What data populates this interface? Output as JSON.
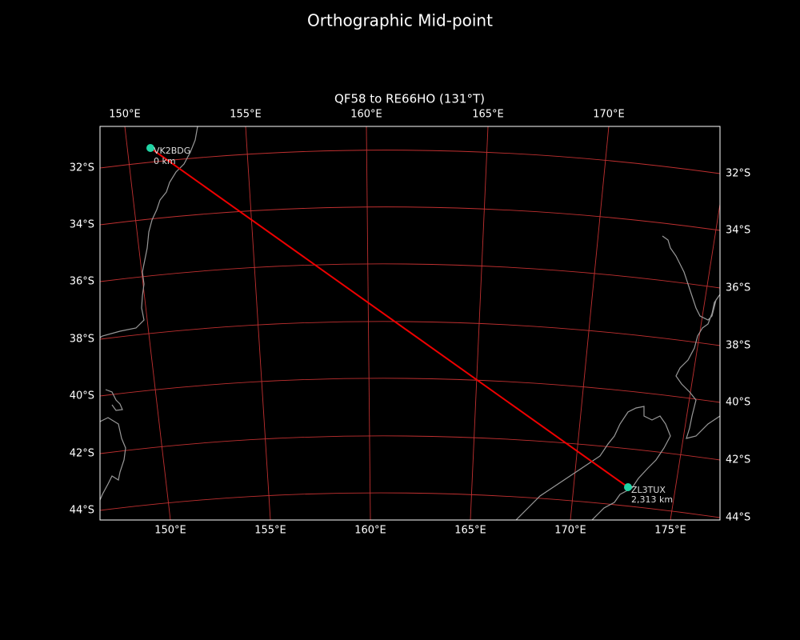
{
  "title": "Orthographic Mid-point",
  "subtitle": "QF58 to RE66HO (131°T)",
  "top_lon_labels": [
    "150°E",
    "155°E",
    "160°E",
    "165°E",
    "170°E"
  ],
  "bottom_lon_labels": [
    "150°E",
    "155°E",
    "160°E",
    "165°E",
    "170°E",
    "175°E"
  ],
  "left_lat_labels": [
    "32°S",
    "34°S",
    "36°S",
    "38°S",
    "40°S",
    "42°S",
    "44°S"
  ],
  "right_lat_labels": [
    "32°S",
    "34°S",
    "36°S",
    "38°S",
    "40°S",
    "42°S",
    "44°S"
  ],
  "stations": [
    {
      "call": "VK2BDG",
      "distance": "0 km"
    },
    {
      "call": "ZL3TUX",
      "distance": "2,313 km"
    }
  ]
}
